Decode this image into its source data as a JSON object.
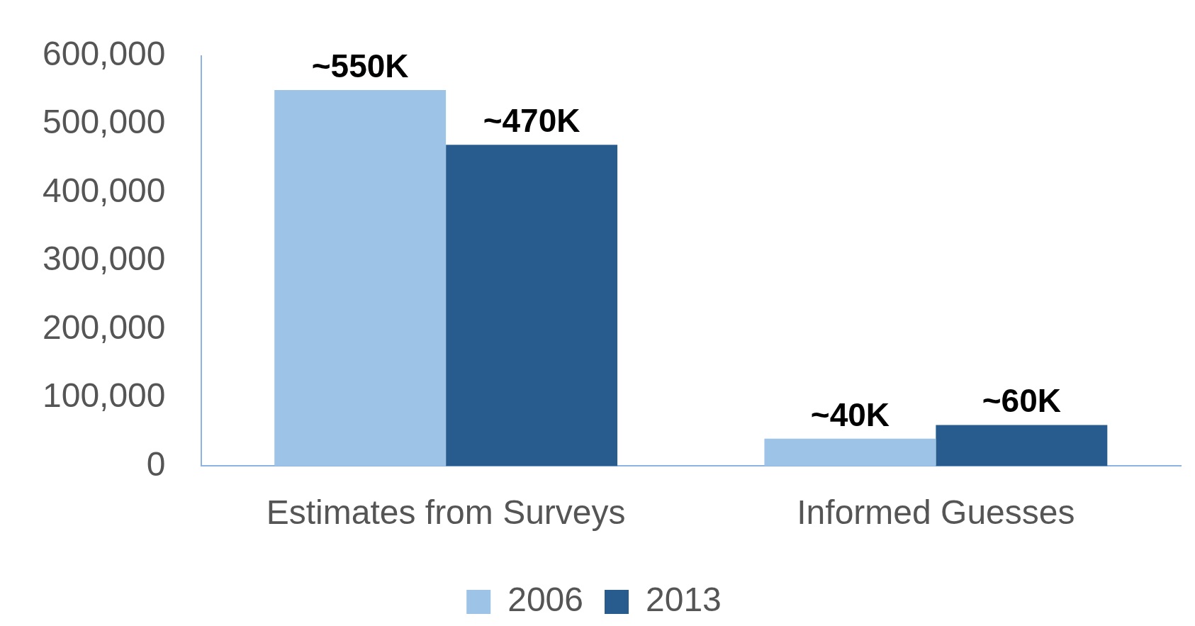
{
  "chart_data": {
    "type": "bar",
    "categories": [
      "Estimates from Surveys",
      "Informed Guesses"
    ],
    "series": [
      {
        "name": "2006",
        "color": "#9dc3e6",
        "values": [
          550000,
          40000
        ],
        "value_labels": [
          "~550K",
          "~40K"
        ]
      },
      {
        "name": "2013",
        "color": "#285c8e",
        "values": [
          470000,
          60000
        ],
        "value_labels": [
          "~470K",
          "~60K"
        ]
      }
    ],
    "ylim": [
      0,
      600000
    ],
    "yticks": [
      {
        "value": 0,
        "label": "0"
      },
      {
        "value": 100000,
        "label": "100,000"
      },
      {
        "value": 200000,
        "label": "200,000"
      },
      {
        "value": 300000,
        "label": "300,000"
      },
      {
        "value": 400000,
        "label": "400,000"
      },
      {
        "value": 500000,
        "label": "500,000"
      },
      {
        "value": 600000,
        "label": "600,000"
      }
    ],
    "grid": false,
    "legend": "bottom"
  }
}
